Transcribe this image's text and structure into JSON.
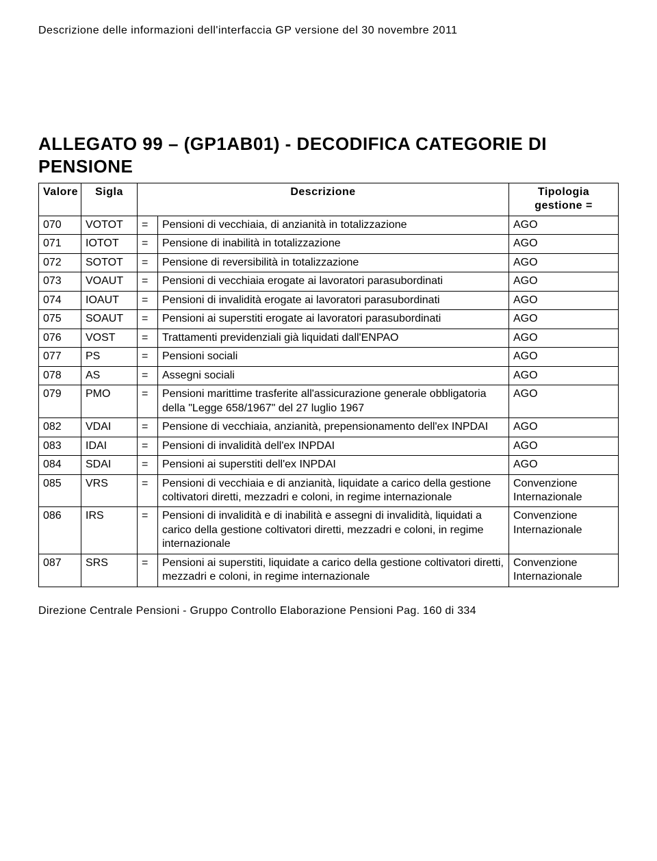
{
  "header_text": "Descrizione delle informazioni dell'interfaccia GP  versione del 30 novembre 2011",
  "title": "ALLEGATO 99 – (GP1AB01) - DECODIFICA CATEGORIE DI PENSIONE",
  "columns": {
    "valore": "Valore",
    "sigla": "Sigla",
    "descrizione": "Descrizione",
    "tipologia": "Tipologia gestione ="
  },
  "rows": [
    {
      "valore": "070",
      "sigla": "VOTOT",
      "eq": "=",
      "descrizione": "Pensioni di vecchiaia, di anzianità in totalizzazione",
      "tipologia": "AGO"
    },
    {
      "valore": "071",
      "sigla": "IOTOT",
      "eq": "=",
      "descrizione": "Pensione di inabilità in totalizzazione",
      "tipologia": "AGO"
    },
    {
      "valore": "072",
      "sigla": "SOTOT",
      "eq": "=",
      "descrizione": "Pensione di reversibilità in totalizzazione",
      "tipologia": "AGO"
    },
    {
      "valore": "073",
      "sigla": "VOAUT",
      "eq": "=",
      "descrizione": "Pensioni di vecchiaia erogate ai lavoratori parasubordinati",
      "tipologia": "AGO"
    },
    {
      "valore": "074",
      "sigla": "IOAUT",
      "eq": "=",
      "descrizione": "Pensioni di invalidità erogate ai lavoratori parasubordinati",
      "tipologia": "AGO"
    },
    {
      "valore": "075",
      "sigla": "SOAUT",
      "eq": "=",
      "descrizione": "Pensioni ai superstiti erogate ai lavoratori parasubordinati",
      "tipologia": "AGO"
    },
    {
      "valore": "076",
      "sigla": "VOST",
      "eq": "=",
      "descrizione": "Trattamenti previdenziali già liquidati dall'ENPAO",
      "tipologia": "AGO"
    },
    {
      "valore": "077",
      "sigla": "PS",
      "eq": "=",
      "descrizione": "Pensioni sociali",
      "tipologia": "AGO"
    },
    {
      "valore": "078",
      "sigla": "AS",
      "eq": "=",
      "descrizione": "Assegni sociali",
      "tipologia": "AGO"
    },
    {
      "valore": "079",
      "sigla": "PMO",
      "eq": "=",
      "descrizione": "Pensioni marittime trasferite all'assicurazione generale obbligatoria della \"Legge 658/1967\" del 27 luglio 1967",
      "tipologia": "AGO"
    },
    {
      "valore": "082",
      "sigla": "VDAI",
      "eq": "=",
      "descrizione": "Pensione di vecchiaia, anzianità, prepensionamento dell'ex INPDAI",
      "tipologia": "AGO"
    },
    {
      "valore": "083",
      "sigla": "IDAI",
      "eq": "=",
      "descrizione": "Pensioni di invalidità dell'ex INPDAI",
      "tipologia": "AGO"
    },
    {
      "valore": "084",
      "sigla": "SDAI",
      "eq": "=",
      "descrizione": "Pensioni ai superstiti dell'ex INPDAI",
      "tipologia": "AGO"
    },
    {
      "valore": "085",
      "sigla": "VRS",
      "eq": "=",
      "descrizione": "Pensioni di vecchiaia e di anzianità, liquidate a carico della gestione coltivatori diretti, mezzadri e coloni, in regime internazionale",
      "tipologia": "Convenzione Internazionale"
    },
    {
      "valore": "086",
      "sigla": "IRS",
      "eq": "=",
      "descrizione": "Pensioni di invalidità e di inabilità e assegni di invalidità, liquidati a carico della gestione coltivatori diretti, mezzadri e coloni, in regime internazionale",
      "tipologia": "Convenzione Internazionale"
    },
    {
      "valore": "087",
      "sigla": "SRS",
      "eq": "=",
      "descrizione": "Pensioni ai superstiti, liquidate a carico della gestione coltivatori diretti, mezzadri e coloni, in regime internazionale",
      "tipologia": "Convenzione Internazionale"
    }
  ],
  "footer_text": "Direzione Centrale Pensioni - Gruppo Controllo Elaborazione Pensioni  Pag. 160 di 334"
}
